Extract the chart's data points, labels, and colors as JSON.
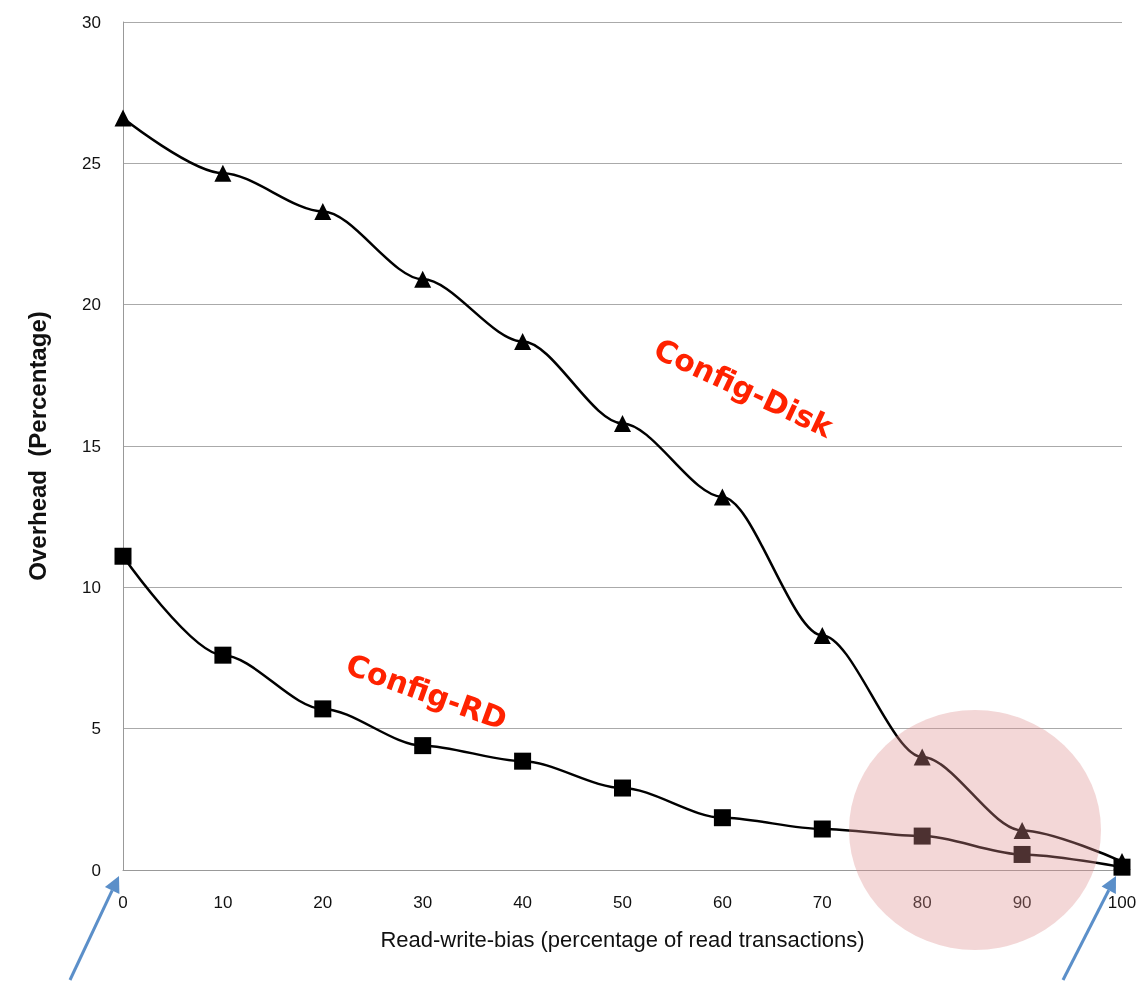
{
  "chart_data": {
    "type": "line",
    "xlabel": "Read-write-bias (percentage of read transactions)",
    "ylabel": "Overhead  (Percentage)",
    "x": [
      0,
      10,
      20,
      30,
      40,
      50,
      60,
      70,
      80,
      90,
      100
    ],
    "xlim": [
      0,
      100
    ],
    "xticks": [
      0,
      10,
      20,
      30,
      40,
      50,
      60,
      70,
      80,
      90,
      100
    ],
    "ylim": [
      0,
      30
    ],
    "yticks": [
      0,
      5,
      10,
      15,
      20,
      25,
      30
    ],
    "grid": "y",
    "legend": false,
    "series": [
      {
        "name": "Config-Disk",
        "color": "#000000",
        "marker": "triangle",
        "values": [
          26.6,
          24.65,
          23.3,
          20.9,
          18.7,
          15.8,
          13.2,
          8.3,
          4.0,
          1.4,
          0.3
        ]
      },
      {
        "name": "Config-RD",
        "color": "#000000",
        "marker": "square",
        "values": [
          11.1,
          7.6,
          5.7,
          4.4,
          3.85,
          2.9,
          1.85,
          1.45,
          1.2,
          0.55,
          0.1
        ]
      }
    ]
  }
}
